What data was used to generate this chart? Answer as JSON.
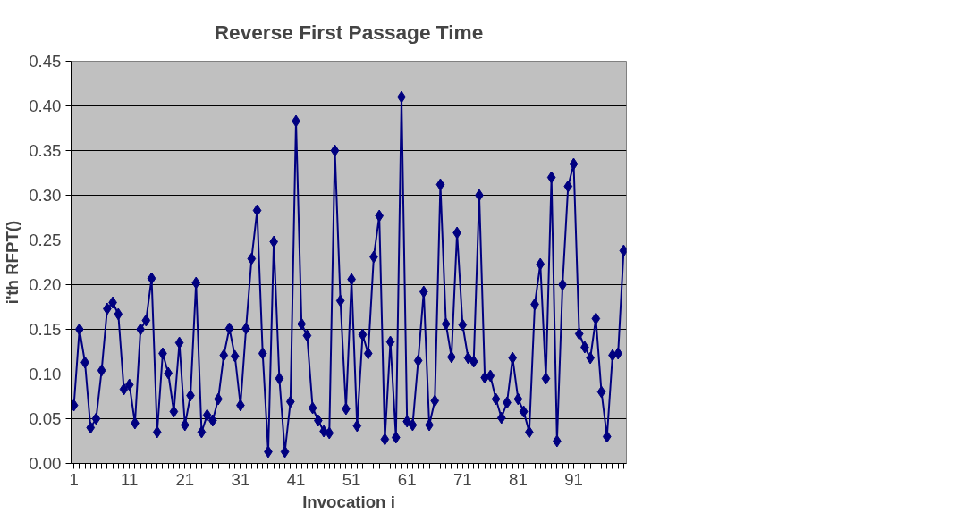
{
  "chart_data": {
    "type": "line",
    "title": "Reverse First Passage Time",
    "xlabel": "Invocation i",
    "ylabel": "i'th RFPT()",
    "categories": [
      "1",
      null,
      null,
      null,
      null,
      null,
      null,
      null,
      null,
      null,
      "11",
      null,
      null,
      null,
      null,
      null,
      null,
      null,
      null,
      null,
      "21",
      null,
      null,
      null,
      null,
      null,
      null,
      null,
      null,
      null,
      "31",
      null,
      null,
      null,
      null,
      null,
      null,
      null,
      null,
      null,
      "41",
      null,
      null,
      null,
      null,
      null,
      null,
      null,
      null,
      null,
      "51",
      null,
      null,
      null,
      null,
      null,
      null,
      null,
      null,
      null,
      "61",
      null,
      null,
      null,
      null,
      null,
      null,
      null,
      null,
      null,
      "71",
      null,
      null,
      null,
      null,
      null,
      null,
      null,
      null,
      null,
      "81",
      null,
      null,
      null,
      null,
      null,
      null,
      null,
      null,
      null,
      "91",
      null,
      null,
      null,
      null,
      null,
      null,
      null,
      null,
      null
    ],
    "series": [
      {
        "color": "#000080",
        "values": [
          0.065,
          0.15,
          0.113,
          0.04,
          0.05,
          0.104,
          0.173,
          0.18,
          0.167,
          0.083,
          0.088,
          0.045,
          0.15,
          0.16,
          0.207,
          0.035,
          0.123,
          0.101,
          0.058,
          0.135,
          0.043,
          0.076,
          0.202,
          0.035,
          0.054,
          0.048,
          0.072,
          0.121,
          0.151,
          0.12,
          0.065,
          0.151,
          0.229,
          0.283,
          0.123,
          0.013,
          0.248,
          0.095,
          0.013,
          0.069,
          0.383,
          0.156,
          0.143,
          0.062,
          0.048,
          0.036,
          0.034,
          0.35,
          0.182,
          0.061,
          0.206,
          0.042,
          0.144,
          0.123,
          0.231,
          0.277,
          0.027,
          0.136,
          0.029,
          0.41,
          0.047,
          0.043,
          0.115,
          0.192,
          0.043,
          0.07,
          0.312,
          0.156,
          0.119,
          0.258,
          0.155,
          0.118,
          0.114,
          0.3,
          0.096,
          0.098,
          0.072,
          0.051,
          0.068,
          0.118,
          0.072,
          0.058,
          0.035,
          0.178,
          0.223,
          0.095,
          0.32,
          0.025,
          0.2,
          0.31,
          0.335,
          0.145,
          0.13,
          0.118,
          0.162,
          0.08,
          0.03,
          0.121,
          0.123,
          0.238
        ]
      }
    ],
    "ylim": [
      0,
      0.45
    ],
    "yticks": [
      {
        "value": 0,
        "label": "0.00"
      },
      {
        "value": 0.05,
        "label": "0.05"
      },
      {
        "value": 0.1,
        "label": "0.10"
      },
      {
        "value": 0.15,
        "label": "0.15"
      },
      {
        "value": 0.2,
        "label": "0.20"
      },
      {
        "value": 0.25,
        "label": "0.25"
      },
      {
        "value": 0.3,
        "label": "0.30"
      },
      {
        "value": 0.35,
        "label": "0.35"
      },
      {
        "value": 0.4,
        "label": "0.40"
      },
      {
        "value": 0.45,
        "label": "0.45"
      }
    ],
    "grid": "y",
    "marker": "diamond",
    "line_style": "solid"
  }
}
